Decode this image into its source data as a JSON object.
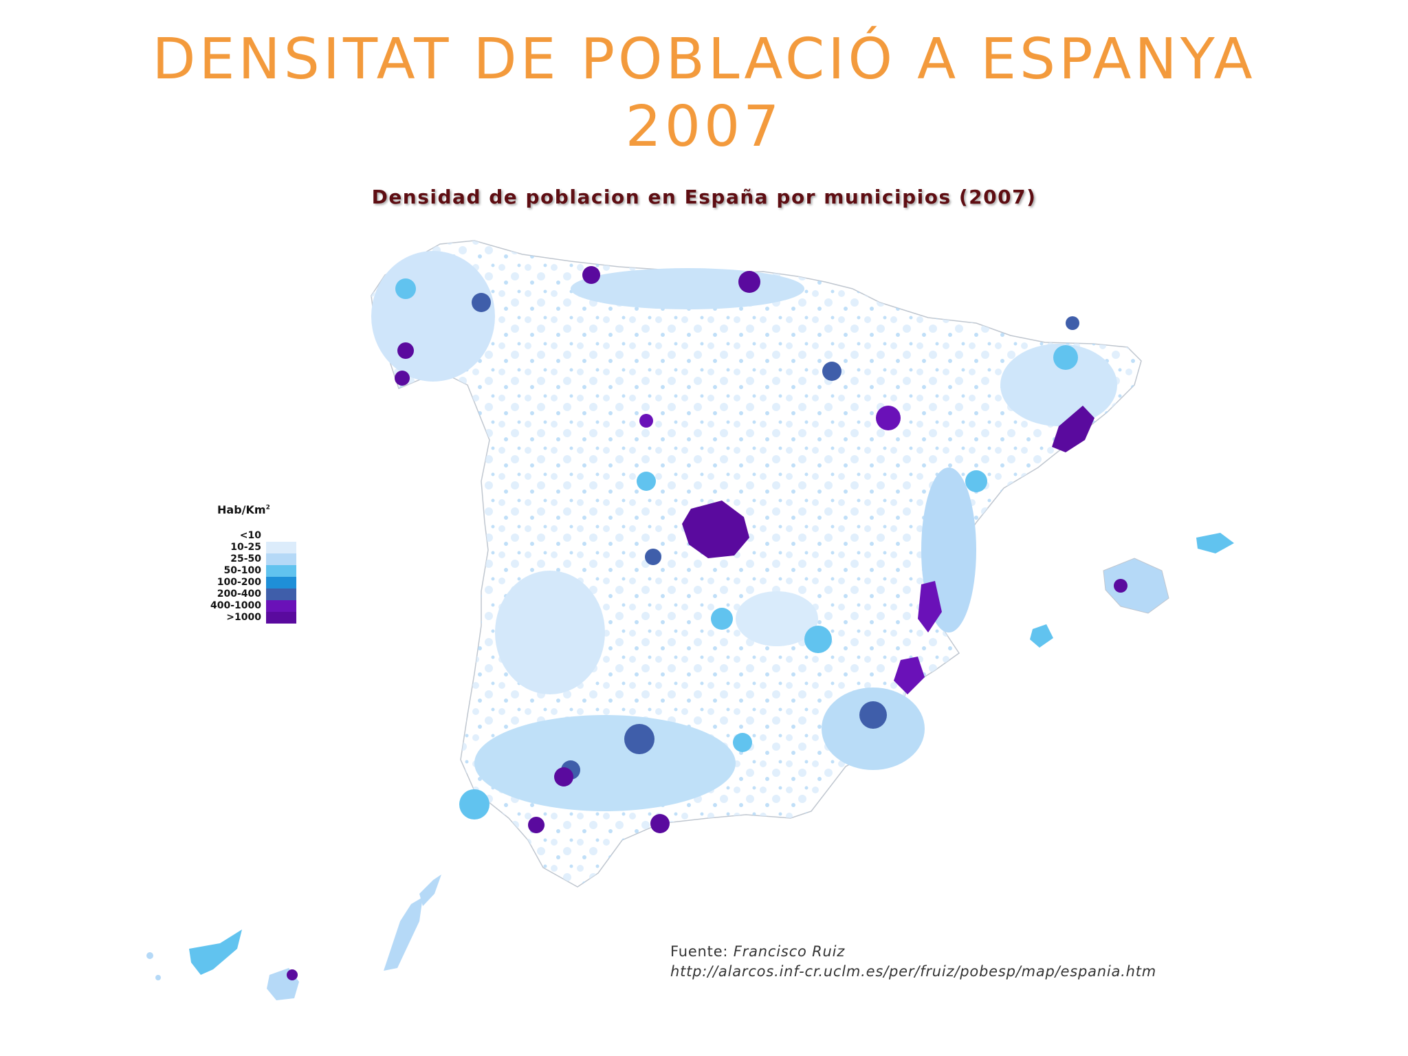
{
  "title": {
    "line1": "DENSITAT DE POBLACIÓ A ESPANYA",
    "line2": "2007"
  },
  "map": {
    "caption": "Densidad de poblacion en España por municipios (2007)",
    "legend": {
      "title": "Hab/Km",
      "title_sup": "2",
      "classes": [
        {
          "label": "<10",
          "color": "#ffffff"
        },
        {
          "label": "10-25",
          "color": "#dcecfb"
        },
        {
          "label": "25-50",
          "color": "#b5d9f7"
        },
        {
          "label": "50-100",
          "color": "#61c3ef"
        },
        {
          "label": "100-200",
          "color": "#1e8fd8"
        },
        {
          "label": "200-400",
          "color": "#3f5eaa"
        },
        {
          "label": "400-1000",
          "color": "#6a11b8"
        },
        {
          "label": ">1000",
          "color": "#5a0a9e"
        }
      ]
    },
    "source_label": "Fuente:",
    "source_author": "Francisco Ruiz",
    "source_url": "http://alarcos.inf-cr.uclm.es/per/fruiz/pobesp/map/espania.htm"
  }
}
